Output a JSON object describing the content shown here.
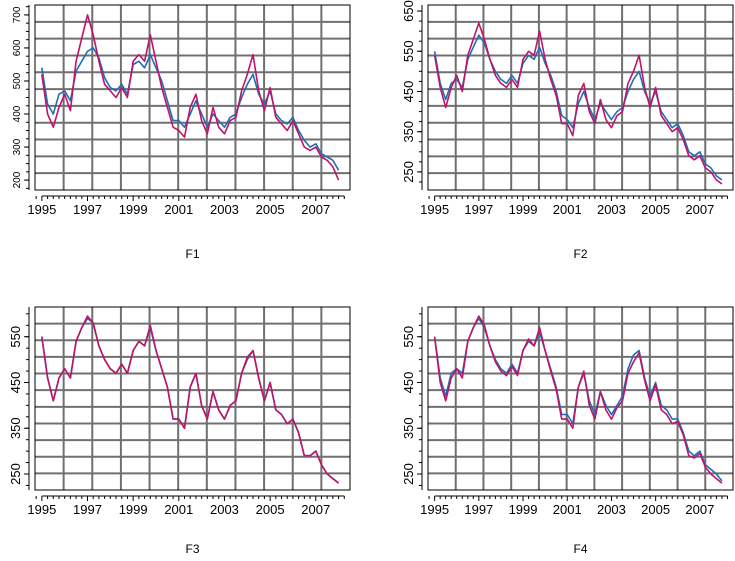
{
  "figure": {
    "background": "#ffffff"
  },
  "colors": {
    "series_a": "#1f6fb4",
    "series_b": "#c0136a",
    "grid": "#707070",
    "axis": "#000000"
  },
  "chart_data": [
    {
      "type": "line",
      "title": "F1",
      "xlabel": "F1",
      "ylabel": "",
      "xlim": [
        1994.7,
        2008.5
      ],
      "ylim": [
        170,
        730
      ],
      "grid": true,
      "x_ticks": [
        "1995",
        "1997",
        "1999",
        "2001",
        "2003",
        "2005",
        "2007"
      ],
      "y_ticks": [
        "200",
        "300",
        "400",
        "500",
        "600",
        "700"
      ],
      "x": [
        1995.0,
        1995.25,
        1995.5,
        1995.75,
        1996.0,
        1996.25,
        1996.5,
        1996.75,
        1997.0,
        1997.25,
        1997.5,
        1997.75,
        1998.0,
        1998.25,
        1998.5,
        1998.75,
        1999.0,
        1999.25,
        1999.5,
        1999.75,
        2000.0,
        2000.25,
        2000.5,
        2000.75,
        2001.0,
        2001.25,
        2001.5,
        2001.75,
        2002.0,
        2002.25,
        2002.5,
        2002.75,
        2003.0,
        2003.25,
        2003.5,
        2003.75,
        2004.0,
        2004.25,
        2004.5,
        2004.75,
        2005.0,
        2005.25,
        2005.5,
        2005.75,
        2006.0,
        2006.25,
        2006.5,
        2006.75,
        2007.0,
        2007.25,
        2007.5,
        2007.75,
        2008.0
      ],
      "series": [
        {
          "color": "#1f6fb4",
          "values": [
            540,
            430,
            400,
            460,
            470,
            440,
            530,
            560,
            590,
            600,
            570,
            510,
            480,
            470,
            490,
            460,
            550,
            560,
            540,
            580,
            540,
            500,
            440,
            380,
            380,
            360,
            400,
            440,
            400,
            360,
            400,
            380,
            360,
            390,
            400,
            450,
            490,
            520,
            460,
            430,
            470,
            400,
            380,
            370,
            390,
            350,
            320,
            300,
            310,
            280,
            270,
            260,
            230
          ]
        },
        {
          "color": "#c0136a",
          "values": [
            520,
            400,
            360,
            420,
            460,
            410,
            560,
            630,
            700,
            640,
            560,
            490,
            470,
            450,
            480,
            450,
            560,
            580,
            560,
            640,
            560,
            480,
            420,
            360,
            350,
            330,
            420,
            460,
            380,
            340,
            420,
            360,
            340,
            380,
            390,
            470,
            520,
            580,
            470,
            410,
            480,
            390,
            370,
            350,
            380,
            340,
            300,
            290,
            300,
            270,
            260,
            240,
            200
          ]
        }
      ]
    },
    {
      "type": "line",
      "title": "F2",
      "xlabel": "F2",
      "ylabel": "",
      "xlim": [
        1994.7,
        2008.5
      ],
      "ylim": [
        205,
        665
      ],
      "grid": true,
      "x_ticks": [
        "1995",
        "1997",
        "1999",
        "2001",
        "2003",
        "2005",
        "2007"
      ],
      "y_ticks": [
        "250",
        "350",
        "450",
        "550",
        "650"
      ],
      "x": [
        1995.0,
        1995.25,
        1995.5,
        1995.75,
        1996.0,
        1996.25,
        1996.5,
        1996.75,
        1997.0,
        1997.25,
        1997.5,
        1997.75,
        1998.0,
        1998.25,
        1998.5,
        1998.75,
        1999.0,
        1999.25,
        1999.5,
        1999.75,
        2000.0,
        2000.25,
        2000.5,
        2000.75,
        2001.0,
        2001.25,
        2001.5,
        2001.75,
        2002.0,
        2002.25,
        2002.5,
        2002.75,
        2003.0,
        2003.25,
        2003.5,
        2003.75,
        2004.0,
        2004.25,
        2004.5,
        2004.75,
        2005.0,
        2005.25,
        2005.5,
        2005.75,
        2006.0,
        2006.25,
        2006.5,
        2006.75,
        2007.0,
        2007.25,
        2007.5,
        2007.75,
        2008.0
      ],
      "series": [
        {
          "color": "#1f6fb4",
          "values": [
            550,
            470,
            430,
            470,
            480,
            460,
            530,
            560,
            590,
            570,
            530,
            500,
            480,
            470,
            490,
            470,
            520,
            540,
            530,
            560,
            520,
            490,
            450,
            390,
            380,
            360,
            420,
            450,
            410,
            380,
            420,
            400,
            380,
            400,
            410,
            450,
            480,
            500,
            450,
            420,
            450,
            400,
            380,
            360,
            370,
            340,
            300,
            290,
            300,
            270,
            260,
            240,
            230
          ]
        },
        {
          "color": "#c0136a",
          "values": [
            540,
            460,
            410,
            460,
            490,
            450,
            540,
            580,
            620,
            580,
            530,
            490,
            470,
            460,
            480,
            460,
            530,
            550,
            540,
            600,
            530,
            480,
            440,
            370,
            370,
            340,
            440,
            470,
            400,
            370,
            430,
            380,
            360,
            390,
            400,
            470,
            500,
            540,
            460,
            410,
            460,
            390,
            370,
            350,
            360,
            330,
            290,
            280,
            290,
            260,
            250,
            230,
            220
          ]
        }
      ]
    },
    {
      "type": "line",
      "title": "F3",
      "xlabel": "F3",
      "ylabel": "",
      "xlim": [
        1994.7,
        2008.5
      ],
      "ylim": [
        215,
        615
      ],
      "grid": true,
      "x_ticks": [
        "1995",
        "1997",
        "1999",
        "2001",
        "2003",
        "2005",
        "2007"
      ],
      "y_ticks": [
        "250",
        "350",
        "450",
        "550"
      ],
      "x": [
        1995.0,
        1995.25,
        1995.5,
        1995.75,
        1996.0,
        1996.25,
        1996.5,
        1996.75,
        1997.0,
        1997.25,
        1997.5,
        1997.75,
        1998.0,
        1998.25,
        1998.5,
        1998.75,
        1999.0,
        1999.25,
        1999.5,
        1999.75,
        2000.0,
        2000.25,
        2000.5,
        2000.75,
        2001.0,
        2001.25,
        2001.5,
        2001.75,
        2002.0,
        2002.25,
        2002.5,
        2002.75,
        2003.0,
        2003.25,
        2003.5,
        2003.75,
        2004.0,
        2004.25,
        2004.5,
        2004.75,
        2005.0,
        2005.25,
        2005.5,
        2005.75,
        2006.0,
        2006.25,
        2006.5,
        2006.75,
        2007.0,
        2007.25,
        2007.5,
        2007.75,
        2008.0
      ],
      "series": [
        {
          "color": "#1f6fb4",
          "values": [
            550,
            460,
            410,
            460,
            480,
            460,
            540,
            570,
            590,
            580,
            530,
            500,
            480,
            470,
            490,
            470,
            520,
            540,
            530,
            570,
            520,
            480,
            440,
            370,
            370,
            350,
            440,
            470,
            400,
            370,
            430,
            390,
            370,
            400,
            410,
            470,
            500,
            520,
            460,
            410,
            450,
            390,
            380,
            360,
            370,
            340,
            290,
            290,
            300,
            270,
            250,
            240,
            230
          ]
        },
        {
          "color": "#c0136a",
          "values": [
            550,
            460,
            410,
            460,
            480,
            460,
            540,
            570,
            595,
            580,
            530,
            500,
            480,
            470,
            490,
            470,
            520,
            540,
            530,
            575,
            520,
            480,
            440,
            370,
            370,
            350,
            440,
            470,
            400,
            370,
            430,
            390,
            370,
            400,
            410,
            470,
            505,
            520,
            460,
            410,
            450,
            390,
            380,
            360,
            370,
            340,
            290,
            290,
            300,
            270,
            250,
            240,
            230
          ]
        }
      ]
    },
    {
      "type": "line",
      "title": "F4",
      "xlabel": "F4",
      "ylabel": "",
      "xlim": [
        1994.7,
        2008.5
      ],
      "ylim": [
        215,
        615
      ],
      "grid": true,
      "x_ticks": [
        "1995",
        "1997",
        "1999",
        "2001",
        "2003",
        "2005",
        "2007"
      ],
      "y_ticks": [
        "250",
        "350",
        "450",
        "550"
      ],
      "x": [
        1995.0,
        1995.25,
        1995.5,
        1995.75,
        1996.0,
        1996.25,
        1996.5,
        1996.75,
        1997.0,
        1997.25,
        1997.5,
        1997.75,
        1998.0,
        1998.25,
        1998.5,
        1998.75,
        1999.0,
        1999.25,
        1999.5,
        1999.75,
        2000.0,
        2000.25,
        2000.5,
        2000.75,
        2001.0,
        2001.25,
        2001.5,
        2001.75,
        2002.0,
        2002.25,
        2002.5,
        2002.75,
        2003.0,
        2003.25,
        2003.5,
        2003.75,
        2004.0,
        2004.25,
        2004.5,
        2004.75,
        2005.0,
        2005.25,
        2005.5,
        2005.75,
        2006.0,
        2006.25,
        2006.5,
        2006.75,
        2007.0,
        2007.25,
        2007.5,
        2007.75,
        2008.0
      ],
      "series": [
        {
          "color": "#1f6fb4",
          "values": [
            550,
            460,
            420,
            470,
            480,
            470,
            540,
            570,
            590,
            570,
            530,
            500,
            480,
            470,
            490,
            470,
            520,
            540,
            530,
            560,
            520,
            480,
            440,
            380,
            380,
            360,
            440,
            470,
            410,
            380,
            430,
            400,
            380,
            400,
            420,
            480,
            510,
            520,
            460,
            420,
            450,
            400,
            390,
            370,
            370,
            340,
            300,
            290,
            300,
            270,
            260,
            250,
            235
          ]
        },
        {
          "color": "#c0136a",
          "values": [
            550,
            450,
            410,
            460,
            480,
            460,
            540,
            570,
            595,
            575,
            530,
            495,
            475,
            465,
            485,
            465,
            520,
            545,
            530,
            570,
            520,
            475,
            435,
            370,
            370,
            350,
            440,
            475,
            400,
            370,
            430,
            390,
            370,
            395,
            410,
            470,
            495,
            515,
            455,
            410,
            445,
            390,
            380,
            360,
            365,
            335,
            290,
            285,
            295,
            265,
            250,
            240,
            230
          ]
        }
      ]
    }
  ]
}
